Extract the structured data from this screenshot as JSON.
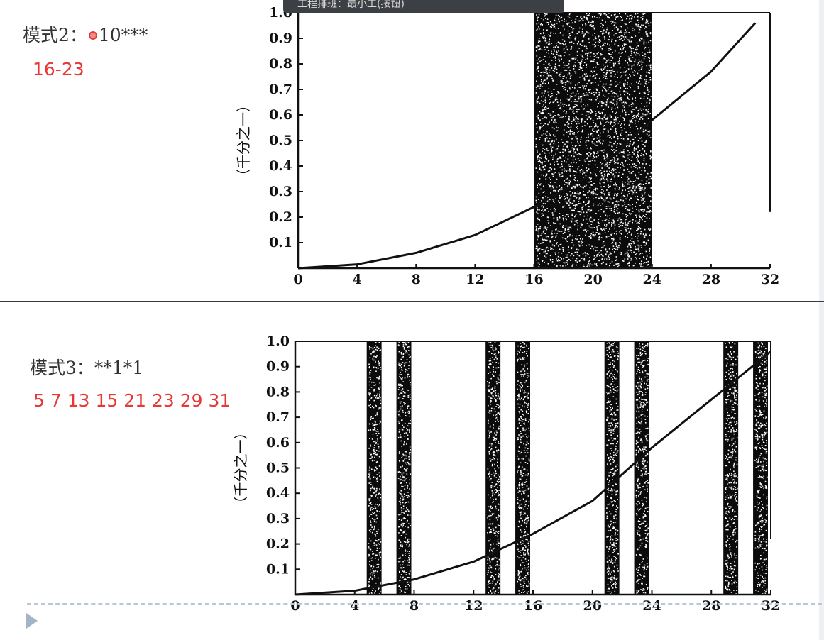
{
  "tooltip": {
    "text": "工程排班：最小工(按钮)"
  },
  "slides": [
    {
      "pattern_label": "模式2：",
      "pattern_value": "10***",
      "answer": "16-23"
    },
    {
      "pattern_label": "模式3：",
      "pattern_value": "**1*1",
      "answer": "5 7 13 15 21 23 29 31"
    }
  ],
  "chart_data": [
    {
      "type": "line",
      "ylabel": "（千分之一）",
      "xlim": [
        0,
        32
      ],
      "ylim": [
        0,
        1.0
      ],
      "x_ticks": [
        "0",
        "4",
        "8",
        "12",
        "16",
        "20",
        "24",
        "28",
        "32"
      ],
      "y_ticks": [
        "0.1",
        "0.2",
        "0.3",
        "0.4",
        "0.5",
        "0.6",
        "0.7",
        "0.8",
        "0.9",
        "1.0"
      ],
      "series": [
        {
          "x": [
            0,
            4,
            8,
            12,
            16,
            20,
            24,
            28,
            31
          ],
          "y": [
            0,
            0.015,
            0.06,
            0.13,
            0.24,
            0.37,
            0.58,
            0.77,
            0.96
          ]
        }
      ],
      "shaded_ranges": [
        [
          16,
          24
        ]
      ]
    },
    {
      "type": "line",
      "ylabel": "（千分之一）",
      "xlim": [
        0,
        32
      ],
      "ylim": [
        0,
        1.0
      ],
      "x_ticks": [
        "0",
        "4",
        "8",
        "12",
        "16",
        "20",
        "24",
        "28",
        "32"
      ],
      "y_ticks": [
        "0.1",
        "0.2",
        "0.3",
        "0.4",
        "0.5",
        "0.6",
        "0.7",
        "0.8",
        "0.9",
        "1.0"
      ],
      "series": [
        {
          "x": [
            0,
            4,
            8,
            12,
            16,
            20,
            24,
            28,
            32
          ],
          "y": [
            0,
            0.015,
            0.06,
            0.13,
            0.24,
            0.37,
            0.58,
            0.77,
            0.96
          ]
        }
      ],
      "shaded_ranges": [
        [
          5,
          6
        ],
        [
          7,
          8
        ],
        [
          13,
          14
        ],
        [
          15,
          16
        ],
        [
          21,
          22
        ],
        [
          23,
          24
        ],
        [
          29,
          30
        ],
        [
          31,
          32
        ]
      ]
    }
  ]
}
